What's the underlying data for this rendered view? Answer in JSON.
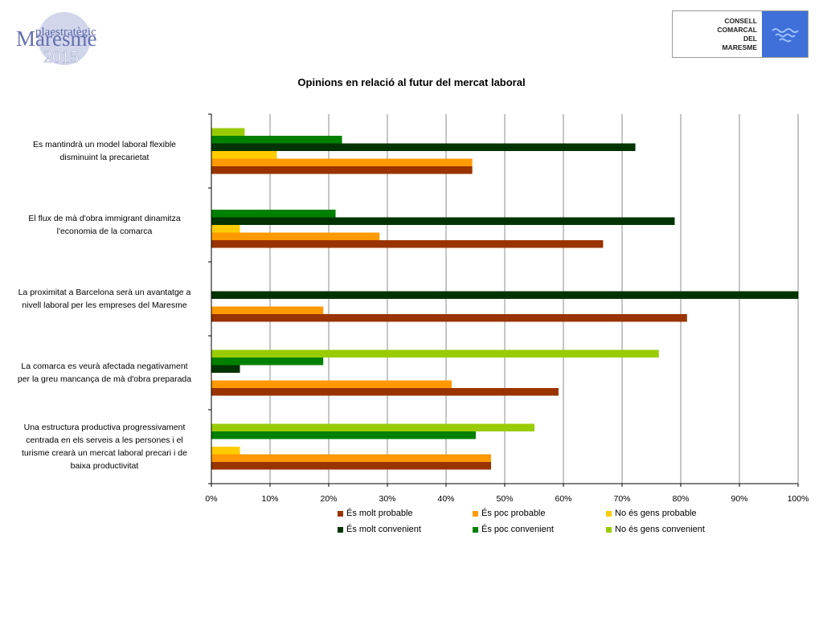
{
  "header": {
    "left_logo": {
      "line1": "plaestratègic",
      "line2": "Maresme",
      "line3": "2015"
    },
    "right_logo": {
      "lines": [
        "CONSELL",
        "COMARCAL",
        "DEL",
        "MARESME"
      ]
    }
  },
  "colors": {
    "mp": "#993300",
    "pp": "#ff9900",
    "ngp": "#ffcc00",
    "mc": "#003300",
    "pc": "#008000",
    "ngc": "#99cc00"
  },
  "chart_data": {
    "type": "bar",
    "orientation": "horizontal",
    "title": "Opinions en relació al futur del mercat laboral",
    "xlim": [
      0,
      100
    ],
    "x_ticks": [
      "0%",
      "10%",
      "20%",
      "30%",
      "40%",
      "50%",
      "60%",
      "70%",
      "80%",
      "90%",
      "100%"
    ],
    "grid": true,
    "legend_position": "bottom",
    "categories": [
      {
        "lines": [
          "Es mantindrà un model laboral flexible",
          "disminuint la precarietat"
        ]
      },
      {
        "lines": [
          "El flux de mà d'obra immigrant dinamitza",
          "l'economia de la comarca"
        ]
      },
      {
        "lines": [
          "La proximitat a Barcelona serà un avantatge a",
          "nivell laboral per les empreses del Maresme"
        ]
      },
      {
        "lines": [
          "La comarca es veurà afectada negativament",
          "per la greu mancança de mà d'obra preparada"
        ]
      },
      {
        "lines": [
          "Una estructura productiva progressivament",
          "centrada en els serveis a les persones i el",
          "turisme crearà un mercat laboral precari i de",
          "baixa productivitat"
        ]
      }
    ],
    "series": [
      {
        "name": "És molt probable",
        "key": "mp",
        "values": [
          44.4,
          66.7,
          81.0,
          59.1,
          47.6
        ]
      },
      {
        "name": "És poc probable",
        "key": "pp",
        "values": [
          44.4,
          28.6,
          19.0,
          40.9,
          47.6
        ]
      },
      {
        "name": "No és gens probable",
        "key": "ngp",
        "values": [
          11.1,
          4.8,
          0,
          0,
          4.8
        ]
      },
      {
        "name": "És molt convenient",
        "key": "mc",
        "values": [
          72.2,
          78.9,
          100.0,
          4.8,
          0
        ]
      },
      {
        "name": "És poc convenient",
        "key": "pc",
        "values": [
          22.2,
          21.1,
          0,
          19.0,
          45.0
        ]
      },
      {
        "name": "No és gens convenient",
        "key": "ngc",
        "values": [
          5.6,
          0,
          0,
          76.2,
          55.0
        ]
      }
    ]
  }
}
